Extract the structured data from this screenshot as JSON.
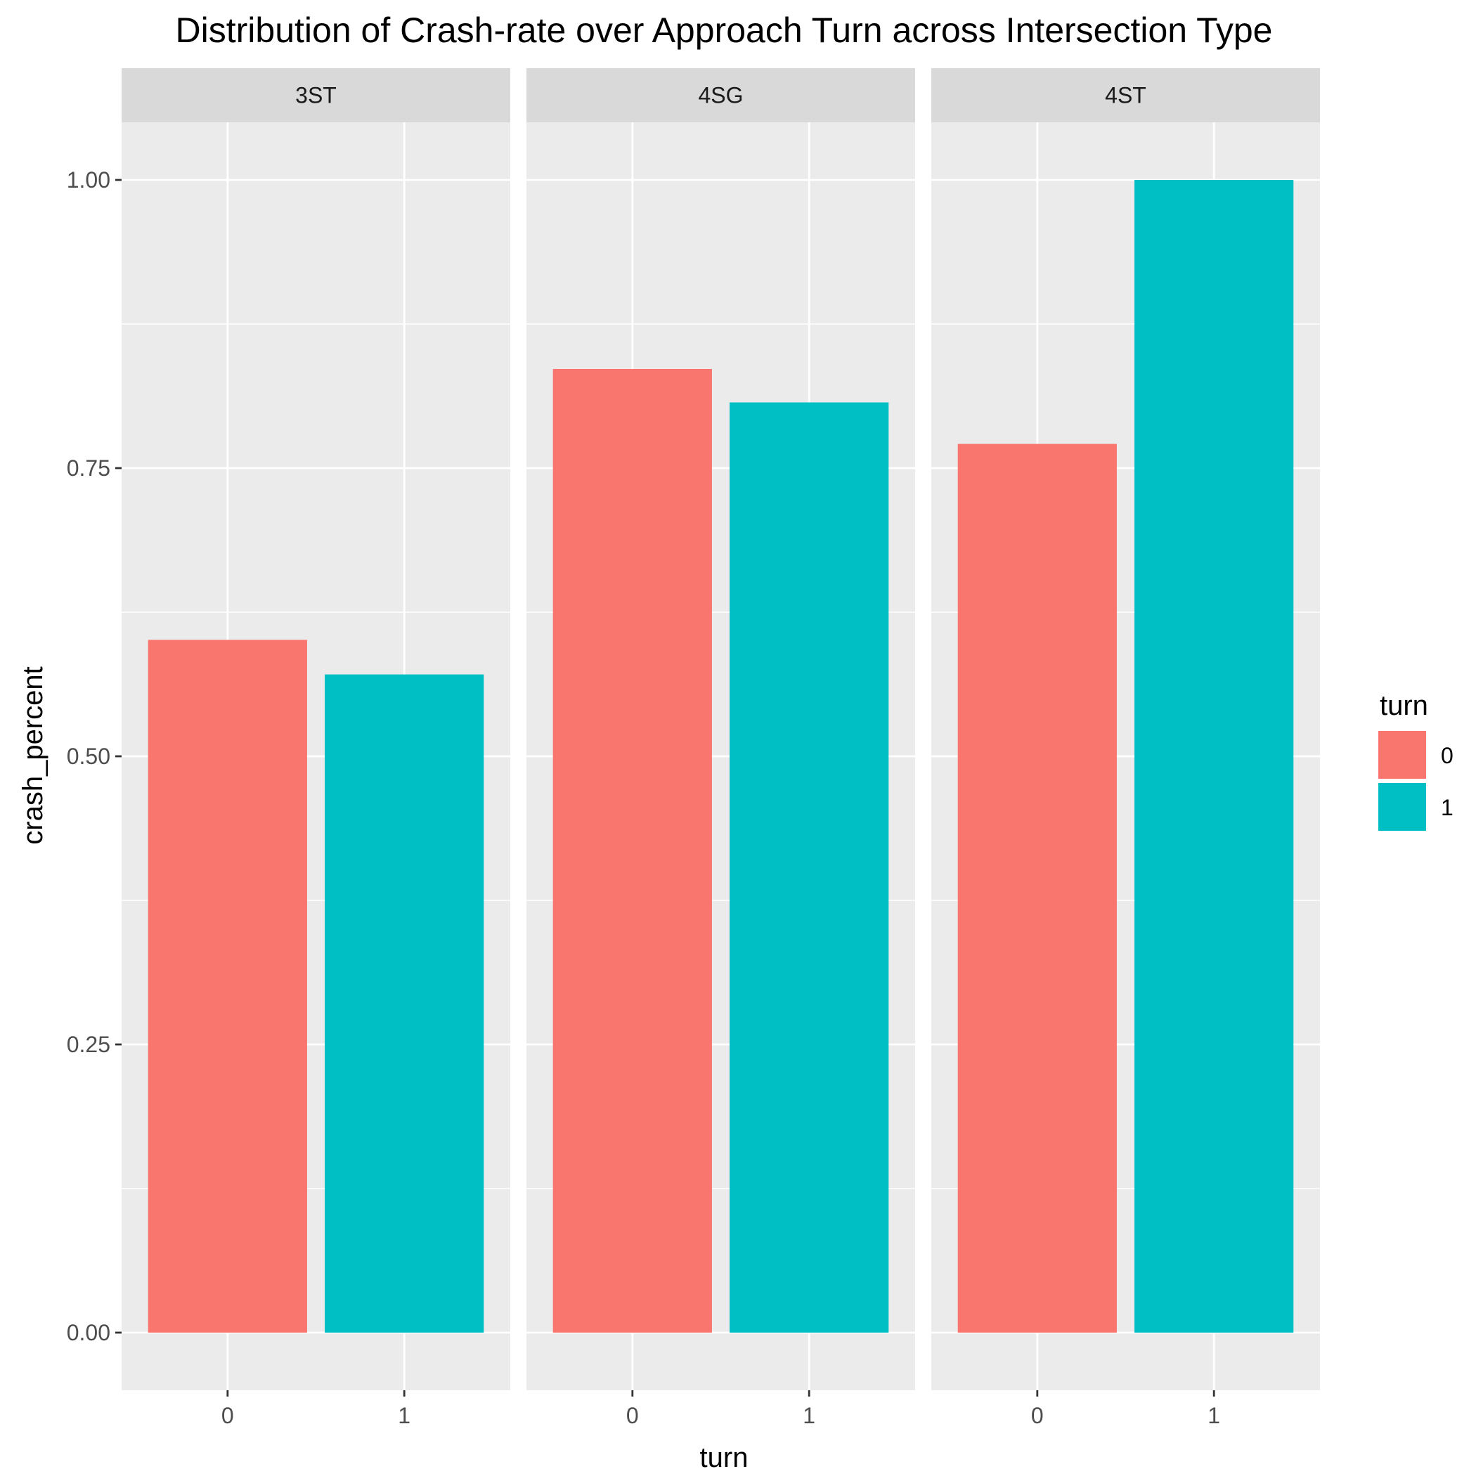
{
  "chart_data": {
    "type": "bar",
    "title": "Distribution of Crash-rate over Approach Turn across Intersection Type",
    "xlabel": "turn",
    "ylabel": "crash_percent",
    "ylim": [
      -0.05,
      1.05
    ],
    "yticks": [
      "0.00",
      "0.25",
      "0.50",
      "0.75",
      "1.00"
    ],
    "ytick_values": [
      0,
      0.25,
      0.5,
      0.75,
      1.0
    ],
    "categories": [
      "0",
      "1"
    ],
    "grid": true,
    "facets": [
      {
        "label": "3ST",
        "values": [
          0.601,
          0.571
        ]
      },
      {
        "label": "4SG",
        "values": [
          0.836,
          0.807
        ]
      },
      {
        "label": "4ST",
        "values": [
          0.771,
          1.0
        ]
      }
    ],
    "legend": {
      "title": "turn",
      "position": "right",
      "entries": [
        {
          "label": "0",
          "color": "#F8766D"
        },
        {
          "label": "1",
          "color": "#00BFC4"
        }
      ]
    }
  }
}
